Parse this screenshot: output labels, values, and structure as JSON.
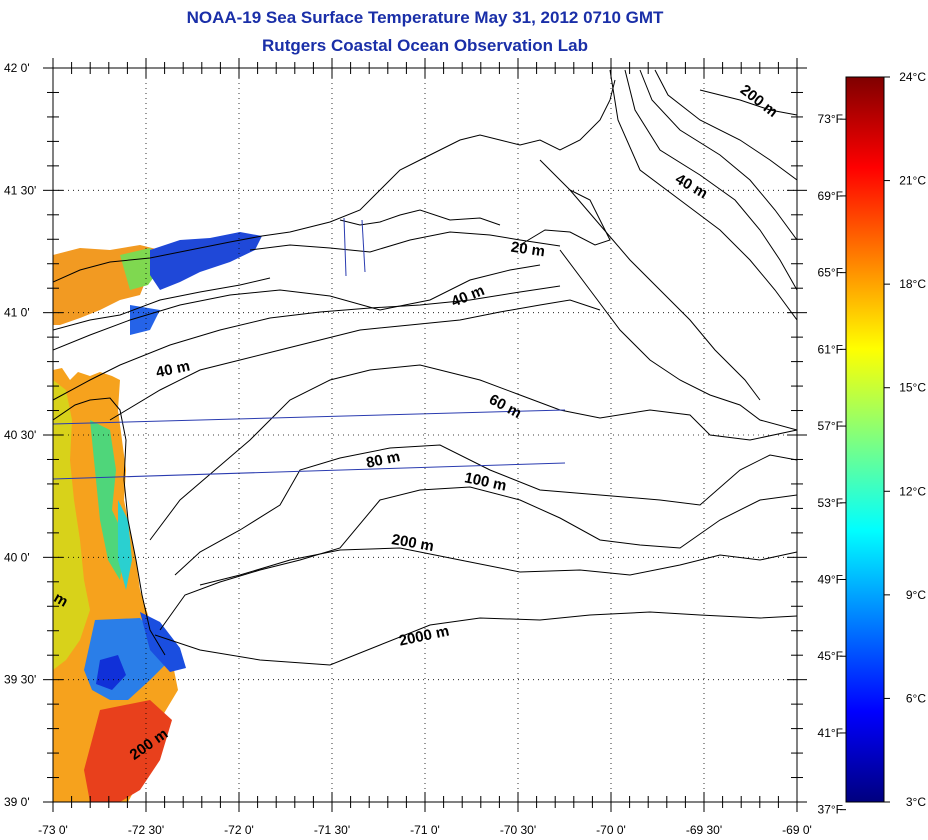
{
  "title": {
    "line1": "NOAA-19 Sea Surface Temperature May 31, 2012 0710 GMT",
    "line2": "Rutgers Coastal Ocean Observation Lab"
  },
  "map": {
    "lon_ticks": [
      "-73 0'",
      "-72 30'",
      "-72 0'",
      "-71 30'",
      "-71 0'",
      "-70 30'",
      "-70 0'",
      "-69 30'",
      "-69 0'"
    ],
    "lat_ticks": [
      "42 0'",
      "41 30'",
      "41 0'",
      "40 30'",
      "40 0'",
      "39 30'",
      "39 0'"
    ],
    "lon_range": [
      -73.0,
      -69.0
    ],
    "lat_range": [
      39.0,
      42.0
    ],
    "contour_labels": [
      {
        "text": "200 m",
        "lon": -69.22,
        "lat": 41.85,
        "angle": 38
      },
      {
        "text": "40 m",
        "lon": -69.58,
        "lat": 41.5,
        "angle": 30
      },
      {
        "text": "20 m",
        "lon": -70.45,
        "lat": 41.24,
        "angle": 8
      },
      {
        "text": "40 m",
        "lon": -70.76,
        "lat": 41.05,
        "angle": -22
      },
      {
        "text": "40 m",
        "lon": -72.35,
        "lat": 40.75,
        "angle": -12
      },
      {
        "text": "60 m",
        "lon": -70.58,
        "lat": 40.6,
        "angle": 28
      },
      {
        "text": "80 m",
        "lon": -71.22,
        "lat": 40.38,
        "angle": -12
      },
      {
        "text": "100 m",
        "lon": -70.68,
        "lat": 40.29,
        "angle": 12
      },
      {
        "text": "200 m",
        "lon": -71.07,
        "lat": 40.04,
        "angle": 10
      },
      {
        "text": "2000 m",
        "lon": -71.0,
        "lat": 39.66,
        "angle": -12
      },
      {
        "text": "200 m",
        "lon": -72.47,
        "lat": 39.22,
        "angle": -35
      },
      {
        "text": "m",
        "lon": -72.97,
        "lat": 39.81,
        "angle": 30
      }
    ]
  },
  "colorbar": {
    "celsius_labels": [
      "24°C",
      "21°C",
      "18°C",
      "15°C",
      "12°C",
      "9°C",
      "6°C",
      "3°C"
    ],
    "fahrenheit_labels": [
      "73°F",
      "69°F",
      "65°F",
      "61°F",
      "57°F",
      "53°F",
      "49°F",
      "45°F",
      "41°F",
      "37°F"
    ],
    "celsius_range": [
      3,
      24
    ],
    "colors": [
      "#00007f",
      "#0000ff",
      "#007fff",
      "#00ffff",
      "#7fff7f",
      "#ffff00",
      "#ff7f00",
      "#ff0000",
      "#7f0000"
    ]
  }
}
